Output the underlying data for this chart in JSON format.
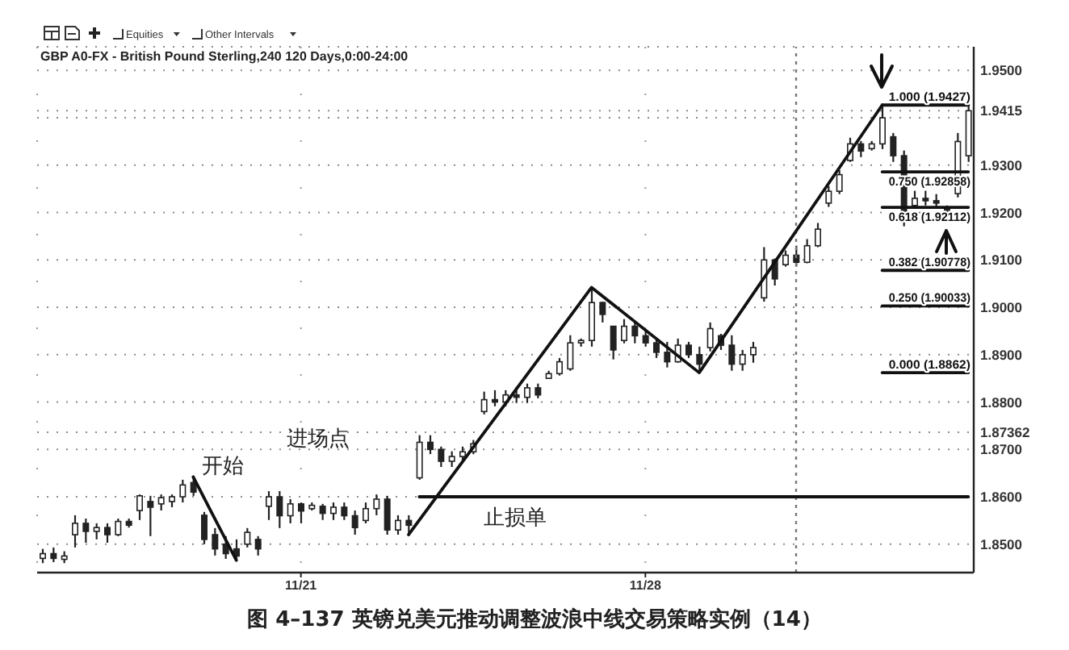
{
  "chart_data": {
    "type": "candlestick",
    "title": "GBP A0-FX - British Pound Sterling,240 120 Days,0:00-24:00",
    "categories": [
      null,
      null,
      null,
      null,
      null,
      null,
      null,
      null,
      null,
      null,
      null,
      null,
      null,
      null,
      null,
      null,
      null,
      null,
      null,
      null,
      null,
      null,
      null,
      null,
      "11/21",
      null,
      null,
      null,
      null,
      null,
      null,
      null,
      null,
      null,
      null,
      null,
      null,
      null,
      null,
      null,
      null,
      null,
      null,
      null,
      null,
      null,
      null,
      null,
      null,
      null,
      null,
      null,
      null,
      null,
      null,
      null,
      "11/28",
      null,
      null,
      null,
      null,
      null,
      null,
      null,
      null,
      null,
      null,
      null,
      null,
      null,
      null,
      null,
      null,
      null,
      null,
      null,
      null,
      null,
      null,
      null,
      null,
      null,
      null,
      null,
      null,
      null,
      null
    ],
    "ohlc": [
      [
        1.847,
        1.849,
        1.846,
        1.848
      ],
      [
        1.848,
        1.8493,
        1.8462,
        1.847
      ],
      [
        1.8468,
        1.8485,
        1.846,
        1.8475
      ],
      [
        1.852,
        1.8561,
        1.8493,
        1.8544
      ],
      [
        1.8544,
        1.8554,
        1.8503,
        1.8527
      ],
      [
        1.8527,
        1.8544,
        1.851,
        1.8535
      ],
      [
        1.8535,
        1.8544,
        1.8503,
        1.852
      ],
      [
        1.852,
        1.8554,
        1.8517,
        1.8548
      ],
      [
        1.8548,
        1.8554,
        1.8535,
        1.854
      ],
      [
        1.8571,
        1.8605,
        1.8551,
        1.8602
      ],
      [
        1.859,
        1.8602,
        1.8517,
        1.8578
      ],
      [
        1.8585,
        1.8605,
        1.8571,
        1.8598
      ],
      [
        1.859,
        1.8605,
        1.8578,
        1.86
      ],
      [
        1.86,
        1.8636,
        1.8588,
        1.8625
      ],
      [
        1.863,
        1.8642,
        1.8602,
        1.861
      ],
      [
        1.8561,
        1.8568,
        1.85,
        1.851
      ],
      [
        1.852,
        1.8534,
        1.8476,
        1.849
      ],
      [
        1.85,
        1.8517,
        1.8469,
        1.848
      ],
      [
        1.849,
        1.851,
        1.8466,
        1.8475
      ],
      [
        1.85,
        1.8534,
        1.8493,
        1.8525
      ],
      [
        1.851,
        1.8517,
        1.8476,
        1.849
      ],
      [
        1.858,
        1.8612,
        1.8551,
        1.86
      ],
      [
        1.86,
        1.8612,
        1.8534,
        1.856
      ],
      [
        1.856,
        1.8595,
        1.8544,
        1.8585
      ],
      [
        1.8585,
        1.8588,
        1.8544,
        1.857
      ],
      [
        1.8575,
        1.8588,
        1.8571,
        1.8582
      ],
      [
        1.858,
        1.8585,
        1.8551,
        1.8565
      ],
      [
        1.8565,
        1.8588,
        1.8551,
        1.8578
      ],
      [
        1.8578,
        1.8588,
        1.8551,
        1.856
      ],
      [
        1.856,
        1.8571,
        1.852,
        1.8535
      ],
      [
        1.855,
        1.8588,
        1.8544,
        1.8575
      ],
      [
        1.8575,
        1.8605,
        1.8561,
        1.8595
      ],
      [
        1.8595,
        1.8602,
        1.852,
        1.853
      ],
      [
        1.853,
        1.8561,
        1.852,
        1.855
      ],
      [
        1.855,
        1.8561,
        1.852,
        1.854
      ],
      [
        1.864,
        1.873,
        1.8636,
        1.8715
      ],
      [
        1.8715,
        1.873,
        1.869,
        1.87
      ],
      [
        1.87,
        1.8706,
        1.8663,
        1.8675
      ],
      [
        1.8675,
        1.8696,
        1.8663,
        1.8685
      ],
      [
        1.8685,
        1.8706,
        1.8673,
        1.8695
      ],
      [
        1.8695,
        1.872,
        1.869,
        1.8712
      ],
      [
        1.878,
        1.8822,
        1.8774,
        1.8805
      ],
      [
        1.8805,
        1.8825,
        1.8791,
        1.88
      ],
      [
        1.88,
        1.8825,
        1.8791,
        1.8815
      ],
      [
        1.8815,
        1.8832,
        1.8798,
        1.881
      ],
      [
        1.881,
        1.8839,
        1.8798,
        1.883
      ],
      [
        1.883,
        1.8839,
        1.8808,
        1.8815
      ],
      [
        1.885,
        1.8866,
        1.8849,
        1.886
      ],
      [
        1.886,
        1.8893,
        1.8856,
        1.8885
      ],
      [
        1.887,
        1.8941,
        1.8866,
        1.8925
      ],
      [
        1.8925,
        1.8934,
        1.8917,
        1.893
      ],
      [
        1.893,
        1.9042,
        1.8917,
        1.901
      ],
      [
        1.901,
        1.9012,
        1.8968,
        1.8985
      ],
      [
        1.896,
        1.8961,
        1.889,
        1.891
      ],
      [
        1.893,
        1.8975,
        1.8924,
        1.896
      ],
      [
        1.896,
        1.8968,
        1.8924,
        1.894
      ],
      [
        1.894,
        1.8951,
        1.8917,
        1.8925
      ],
      [
        1.8925,
        1.8934,
        1.8893,
        1.8905
      ],
      [
        1.8905,
        1.8927,
        1.8873,
        1.8885
      ],
      [
        1.8885,
        1.8934,
        1.8883,
        1.892
      ],
      [
        1.892,
        1.8927,
        1.8893,
        1.89
      ],
      [
        1.89,
        1.8917,
        1.8862,
        1.888
      ],
      [
        1.8915,
        1.8968,
        1.8907,
        1.8955
      ],
      [
        1.894,
        1.8944,
        1.891,
        1.892
      ],
      [
        1.892,
        1.8941,
        1.8866,
        1.888
      ],
      [
        1.888,
        1.891,
        1.8866,
        1.89
      ],
      [
        1.89,
        1.8927,
        1.8883,
        1.8915
      ],
      [
        1.902,
        1.9127,
        1.9012,
        1.91
      ],
      [
        1.91,
        1.9103,
        1.9046,
        1.906
      ],
      [
        1.909,
        1.912,
        1.9086,
        1.911
      ],
      [
        1.911,
        1.913,
        1.9086,
        1.9095
      ],
      [
        1.9095,
        1.9144,
        1.9093,
        1.913
      ],
      [
        1.913,
        1.9178,
        1.9127,
        1.9165
      ],
      [
        1.922,
        1.9256,
        1.9212,
        1.9245
      ],
      [
        1.9245,
        1.929,
        1.9239,
        1.928
      ],
      [
        1.931,
        1.9358,
        1.9307,
        1.9345
      ],
      [
        1.9345,
        1.9351,
        1.9317,
        1.933
      ],
      [
        1.9335,
        1.9351,
        1.9331,
        1.9345
      ],
      [
        1.9345,
        1.9427,
        1.9334,
        1.94
      ],
      [
        1.936,
        1.9368,
        1.9307,
        1.932
      ],
      [
        1.932,
        1.9331,
        1.9171,
        1.92
      ],
      [
        1.9215,
        1.9246,
        1.9212,
        1.923
      ],
      [
        1.923,
        1.9246,
        1.9215,
        1.9225
      ],
      [
        1.9225,
        1.9239,
        1.9212,
        1.922
      ],
      [
        1.921,
        1.9215,
        1.9198,
        1.9205
      ],
      [
        1.924,
        1.9368,
        1.9232,
        1.935
      ],
      [
        1.932,
        1.9449,
        1.9307,
        1.9415
      ]
    ],
    "color": "#222222",
    "series": [
      {
        "type": "line",
        "color": "#111111",
        "values": [
          null,
          null,
          null,
          null,
          null,
          null,
          null,
          null,
          null,
          null,
          null,
          null,
          null,
          null,
          1.8642,
          null,
          null,
          null,
          1.8466,
          null,
          null,
          null,
          null,
          null,
          null,
          null,
          null,
          null,
          null,
          null,
          null,
          null,
          null,
          null,
          null,
          null,
          null,
          null,
          null,
          null,
          null,
          null,
          null,
          null,
          null,
          null,
          null,
          null,
          null,
          null,
          null,
          null,
          null,
          null,
          null,
          null,
          null,
          null,
          null,
          null,
          null,
          null,
          null,
          null,
          null,
          null,
          null,
          null,
          null,
          null,
          null,
          null,
          null,
          null,
          null,
          null,
          null,
          null,
          null,
          null,
          null,
          null,
          null,
          null,
          null,
          null,
          null
        ]
      },
      {
        "type": "line",
        "color": "#111111",
        "values": [
          null,
          null,
          null,
          null,
          null,
          null,
          null,
          null,
          null,
          null,
          null,
          null,
          null,
          null,
          null,
          null,
          null,
          null,
          null,
          null,
          null,
          null,
          null,
          null,
          null,
          null,
          null,
          null,
          null,
          null,
          null,
          null,
          null,
          null,
          1.852,
          null,
          null,
          null,
          null,
          null,
          null,
          null,
          null,
          null,
          null,
          null,
          null,
          null,
          null,
          null,
          null,
          1.9042,
          null,
          null,
          null,
          null,
          null,
          null,
          null,
          null,
          null,
          1.8862,
          null,
          null,
          null,
          null,
          null,
          null,
          null,
          null,
          null,
          null,
          null,
          null,
          null,
          null,
          null,
          null,
          1.9427,
          null,
          null,
          null,
          null,
          null,
          null,
          null,
          null
        ]
      },
      {
        "type": "line",
        "name": "1.000 (1.9427)",
        "color": "#111111",
        "values": [
          null,
          null,
          null,
          null,
          null,
          null,
          null,
          null,
          null,
          null,
          null,
          null,
          null,
          null,
          null,
          null,
          null,
          null,
          null,
          null,
          null,
          null,
          null,
          null,
          null,
          null,
          null,
          null,
          null,
          null,
          null,
          null,
          null,
          null,
          null,
          null,
          null,
          null,
          null,
          null,
          null,
          null,
          null,
          null,
          null,
          null,
          null,
          null,
          null,
          null,
          null,
          null,
          null,
          null,
          null,
          null,
          null,
          null,
          null,
          null,
          null,
          null,
          null,
          null,
          null,
          null,
          null,
          null,
          null,
          null,
          null,
          null,
          null,
          null,
          null,
          null,
          null,
          null,
          1.9427,
          1.9427,
          1.9427,
          1.9427,
          1.9427,
          1.9427,
          1.9427,
          1.9427,
          1.9427
        ]
      },
      {
        "type": "line",
        "name": "0.750 (1.92858)",
        "color": "#111111",
        "values": [
          null,
          null,
          null,
          null,
          null,
          null,
          null,
          null,
          null,
          null,
          null,
          null,
          null,
          null,
          null,
          null,
          null,
          null,
          null,
          null,
          null,
          null,
          null,
          null,
          null,
          null,
          null,
          null,
          null,
          null,
          null,
          null,
          null,
          null,
          null,
          null,
          null,
          null,
          null,
          null,
          null,
          null,
          null,
          null,
          null,
          null,
          null,
          null,
          null,
          null,
          null,
          null,
          null,
          null,
          null,
          null,
          null,
          null,
          null,
          null,
          null,
          null,
          null,
          null,
          null,
          null,
          null,
          null,
          null,
          null,
          null,
          null,
          null,
          null,
          null,
          null,
          null,
          null,
          1.9286,
          1.9286,
          1.9286,
          1.9286,
          1.9286,
          1.9286,
          1.9286,
          1.9286,
          1.9286
        ]
      },
      {
        "type": "line",
        "name": "0.618 (1.92112)",
        "color": "#111111",
        "values": [
          null,
          null,
          null,
          null,
          null,
          null,
          null,
          null,
          null,
          null,
          null,
          null,
          null,
          null,
          null,
          null,
          null,
          null,
          null,
          null,
          null,
          null,
          null,
          null,
          null,
          null,
          null,
          null,
          null,
          null,
          null,
          null,
          null,
          null,
          null,
          null,
          null,
          null,
          null,
          null,
          null,
          null,
          null,
          null,
          null,
          null,
          null,
          null,
          null,
          null,
          null,
          null,
          null,
          null,
          null,
          null,
          null,
          null,
          null,
          null,
          null,
          null,
          null,
          null,
          null,
          null,
          null,
          null,
          null,
          null,
          null,
          null,
          null,
          null,
          null,
          null,
          null,
          null,
          1.9211,
          1.9211,
          1.9211,
          1.9211,
          1.9211,
          1.9211,
          1.9211,
          1.9211,
          1.9211
        ]
      },
      {
        "type": "line",
        "name": "0.382 (1.90778)",
        "color": "#111111",
        "values": [
          null,
          null,
          null,
          null,
          null,
          null,
          null,
          null,
          null,
          null,
          null,
          null,
          null,
          null,
          null,
          null,
          null,
          null,
          null,
          null,
          null,
          null,
          null,
          null,
          null,
          null,
          null,
          null,
          null,
          null,
          null,
          null,
          null,
          null,
          null,
          null,
          null,
          null,
          null,
          null,
          null,
          null,
          null,
          null,
          null,
          null,
          null,
          null,
          null,
          null,
          null,
          null,
          null,
          null,
          null,
          null,
          null,
          null,
          null,
          null,
          null,
          null,
          null,
          null,
          null,
          null,
          null,
          null,
          null,
          null,
          null,
          null,
          null,
          null,
          null,
          null,
          null,
          null,
          1.9078,
          1.9078,
          1.9078,
          1.9078,
          1.9078,
          1.9078,
          1.9078,
          1.9078,
          1.9078
        ]
      },
      {
        "type": "line",
        "name": "0.250 (1.90033)",
        "color": "#111111",
        "values": [
          null,
          null,
          null,
          null,
          null,
          null,
          null,
          null,
          null,
          null,
          null,
          null,
          null,
          null,
          null,
          null,
          null,
          null,
          null,
          null,
          null,
          null,
          null,
          null,
          null,
          null,
          null,
          null,
          null,
          null,
          null,
          null,
          null,
          null,
          null,
          null,
          null,
          null,
          null,
          null,
          null,
          null,
          null,
          null,
          null,
          null,
          null,
          null,
          null,
          null,
          null,
          null,
          null,
          null,
          null,
          null,
          null,
          null,
          null,
          null,
          null,
          null,
          null,
          null,
          null,
          null,
          null,
          null,
          null,
          null,
          null,
          null,
          null,
          null,
          null,
          null,
          null,
          null,
          1.9003,
          1.9003,
          1.9003,
          1.9003,
          1.9003,
          1.9003,
          1.9003,
          1.9003,
          1.9003
        ]
      },
      {
        "type": "line",
        "name": "0.000 (1.8862)",
        "color": "#111111",
        "values": [
          null,
          null,
          null,
          null,
          null,
          null,
          null,
          null,
          null,
          null,
          null,
          null,
          null,
          null,
          null,
          null,
          null,
          null,
          null,
          null,
          null,
          null,
          null,
          null,
          null,
          null,
          null,
          null,
          null,
          null,
          null,
          null,
          null,
          null,
          null,
          null,
          null,
          null,
          null,
          null,
          null,
          null,
          null,
          null,
          null,
          null,
          null,
          null,
          null,
          null,
          null,
          null,
          null,
          null,
          null,
          null,
          null,
          null,
          null,
          null,
          null,
          null,
          null,
          null,
          null,
          null,
          null,
          null,
          null,
          null,
          null,
          null,
          null,
          null,
          null,
          null,
          null,
          null,
          1.8862,
          1.8862,
          1.8862,
          1.8862,
          1.8862,
          1.8862,
          1.8862,
          1.8862,
          1.8862
        ]
      },
      {
        "type": "line",
        "name": "止损单",
        "color": "#111111",
        "values": [
          null,
          null,
          null,
          null,
          null,
          null,
          null,
          null,
          null,
          null,
          null,
          null,
          null,
          null,
          null,
          null,
          null,
          null,
          null,
          null,
          null,
          null,
          null,
          null,
          null,
          null,
          null,
          null,
          null,
          null,
          null,
          null,
          null,
          null,
          null,
          1.86,
          1.86,
          1.86,
          1.86,
          1.86,
          1.86,
          1.86,
          1.86,
          1.86,
          1.86,
          1.86,
          1.86,
          1.86,
          1.86,
          1.86,
          1.86,
          1.86,
          1.86,
          1.86,
          1.86,
          1.86,
          1.86,
          1.86,
          1.86,
          1.86,
          1.86,
          1.86,
          1.86,
          1.86,
          1.86,
          1.86,
          1.86,
          1.86,
          1.86,
          1.86,
          1.86,
          1.86,
          1.86,
          1.86,
          1.86,
          1.86,
          1.86,
          1.86,
          1.86,
          1.86,
          1.86,
          1.86,
          1.86,
          1.86,
          1.86,
          1.86,
          1.86
        ]
      }
    ],
    "ylim": [
      1.844,
      1.955
    ],
    "yticks": [
      {
        "value": 1.85,
        "label": "1.8500"
      },
      {
        "value": 1.86,
        "label": "1.8600"
      },
      {
        "value": 1.87,
        "label": "1.8700"
      },
      1.87362,
      {
        "value": 1.88,
        "label": "1.8800"
      },
      {
        "value": 1.89,
        "label": "1.8900"
      },
      {
        "value": 1.9,
        "label": "1.9000"
      },
      {
        "value": 1.91,
        "label": "1.9100"
      },
      {
        "value": 1.92,
        "label": "1.9200"
      },
      {
        "value": 1.93,
        "label": "1.9300"
      },
      {
        "value": 1.94,
        "label": null
      },
      1.9415,
      {
        "value": 1.95,
        "label": "1.9500"
      }
    ],
    "grid": true,
    "marker": "none",
    "annotations": [
      "图 4–137 英镑兑美元推动调整波浪中线交易策略实例（14）",
      "Equities",
      "Other Intervals",
      "开始",
      "进场点"
    ]
  }
}
